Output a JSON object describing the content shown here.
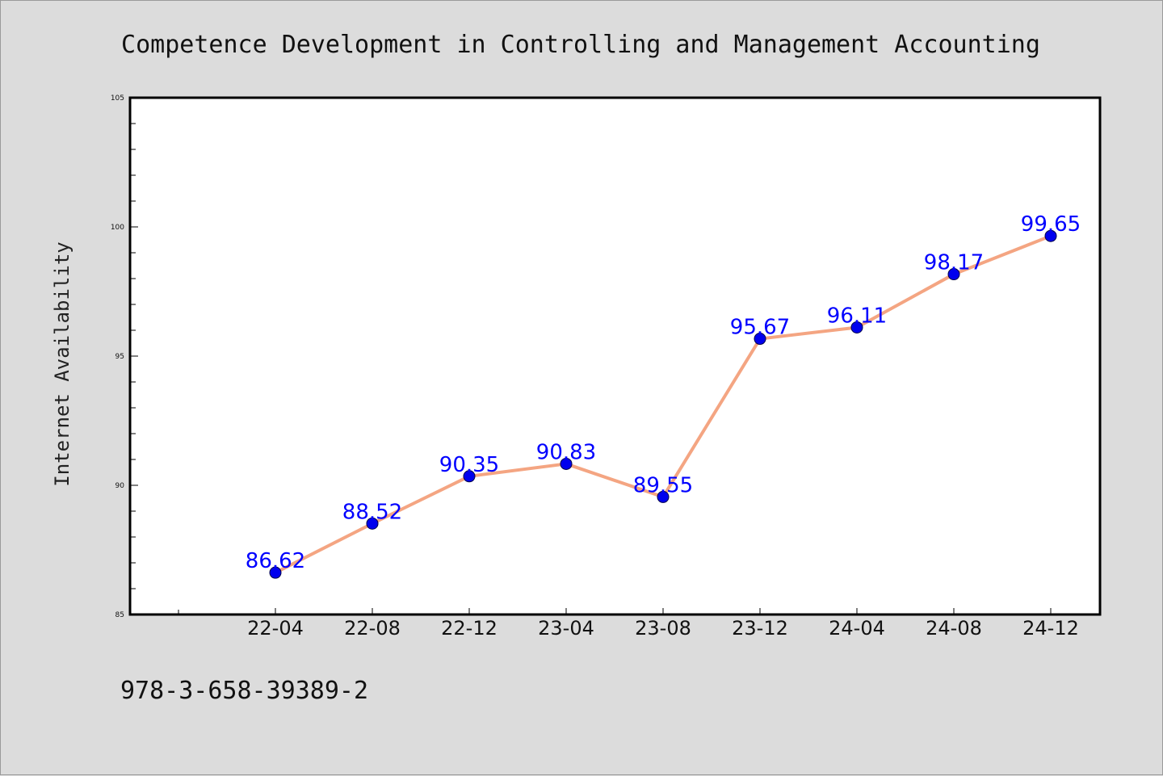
{
  "chart_data": {
    "type": "line",
    "title": "Competence Development in Controlling and Management Accounting",
    "xlabel": "",
    "ylabel": "Internet Availability",
    "categories": [
      "22-04",
      "22-08",
      "22-12",
      "23-04",
      "23-08",
      "23-12",
      "24-04",
      "24-08",
      "24-12"
    ],
    "series": [
      {
        "values": [
          86.62,
          88.52,
          90.35,
          90.83,
          89.55,
          95.67,
          96.11,
          98.17,
          99.65
        ],
        "data_labels": [
          "86.62",
          "88.52",
          "90.35",
          "90.83",
          "89.55",
          "95.67",
          "96.11",
          "98.17",
          "99.65"
        ]
      }
    ],
    "ylim": [
      85,
      105
    ],
    "yticks": [
      "85",
      "90",
      "95",
      "100",
      "105"
    ],
    "grid": false,
    "legend": "none",
    "colors": {
      "line": "#f4a582",
      "marker": "#0000ee",
      "label": "#0000ff",
      "plot_background": "#ffffff",
      "page_background": "#dcdcdc"
    }
  },
  "footer": {
    "isbn": "978-3-658-39389-2"
  }
}
